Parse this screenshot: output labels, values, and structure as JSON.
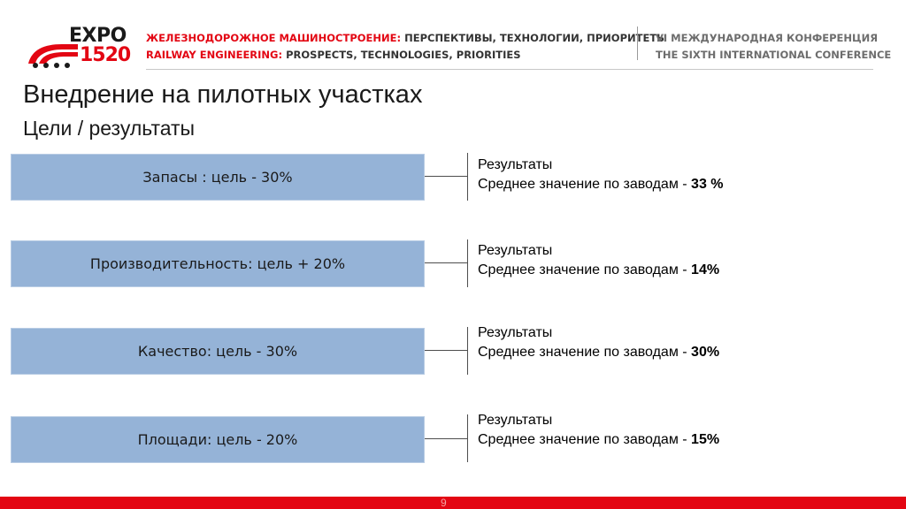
{
  "header": {
    "logo_top": "EXPO",
    "logo_bottom": "1520",
    "line1_red": "ЖЕЛЕЗНОДОРОЖНОЕ МАШИНОСТРОЕНИЕ:",
    "line1_dark": "ПЕРСПЕКТИВЫ, ТЕХНОЛОГИИ, ПРИОРИТЕТЫ",
    "line2_red": "RAILWAY ENGINEERING:",
    "line2_dark": "PROSPECTS, TECHNOLOGIES, PRIORITIES",
    "right_line1": "VI МЕЖДУНАРОДНАЯ КОНФЕРЕНЦИЯ",
    "right_line2": "THE SIXTH INTERNATIONAL CONFERENCE"
  },
  "title": "Внедрение на пилотных участках",
  "subtitle": "Цели / результаты",
  "rows": [
    {
      "goal": "Запасы : цель  - 30%",
      "result_label": "Результаты",
      "result_text": "Среднее значение по заводам - ",
      "result_value": "33 %"
    },
    {
      "goal": "Производительность: цель  + 20%",
      "result_label": "Результаты",
      "result_text": "Среднее значение по заводам - ",
      "result_value": "14%"
    },
    {
      "goal": "Качество: цель - 30%",
      "result_label": "Результаты",
      "result_text": "Среднее значение по заводам - ",
      "result_value": "30%"
    },
    {
      "goal": "Площади: цель  - 20%",
      "result_label": "Результаты",
      "result_text": "Среднее значение по заводам - ",
      "result_value": "15%"
    }
  ],
  "page_number": "9",
  "colors": {
    "brand_red": "#e30613",
    "goal_box": "#95b3d7"
  }
}
